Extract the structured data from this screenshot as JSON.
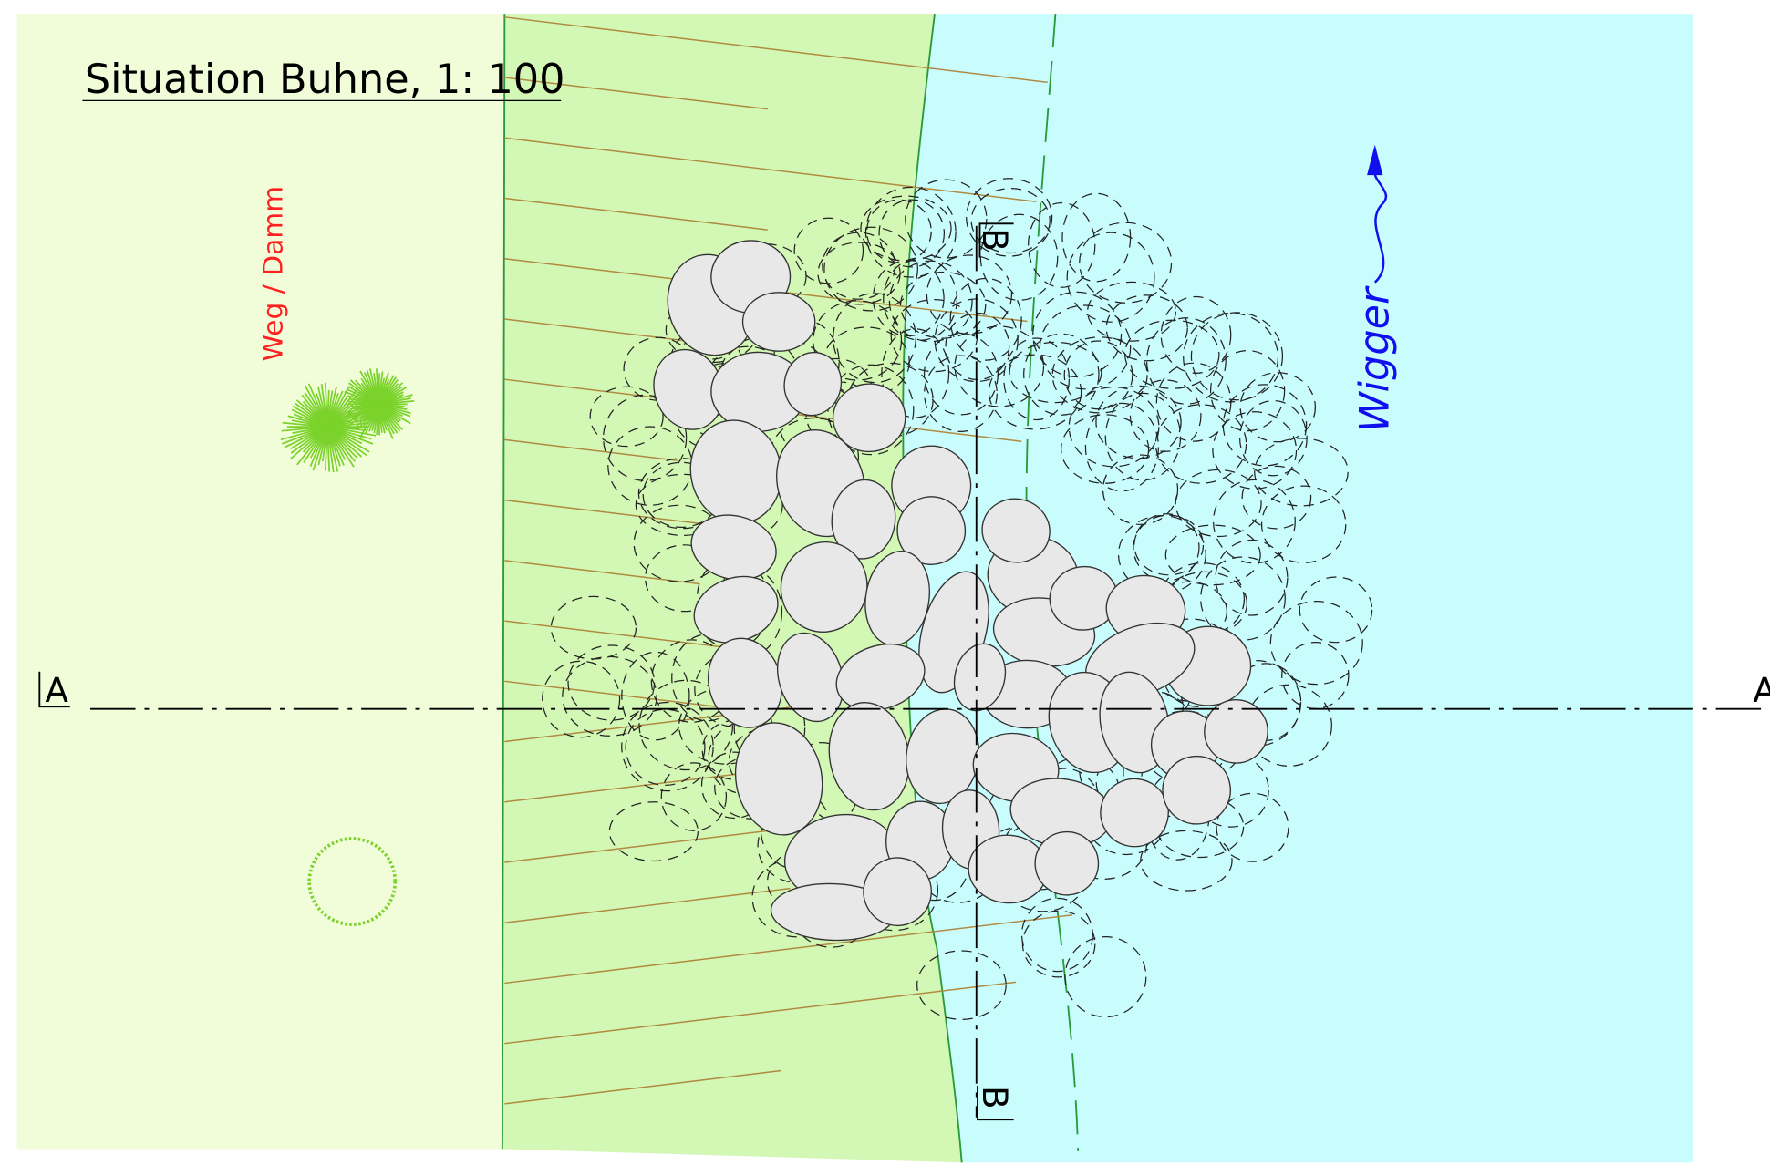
{
  "header": {
    "title": "Situation Buhne, 1: 100"
  },
  "labels": {
    "path": "Weg / Damm",
    "river": "Wigger"
  },
  "sections": {
    "a_left": "A",
    "a_right": "A",
    "b_top": "B",
    "b_bottom": "B"
  }
}
